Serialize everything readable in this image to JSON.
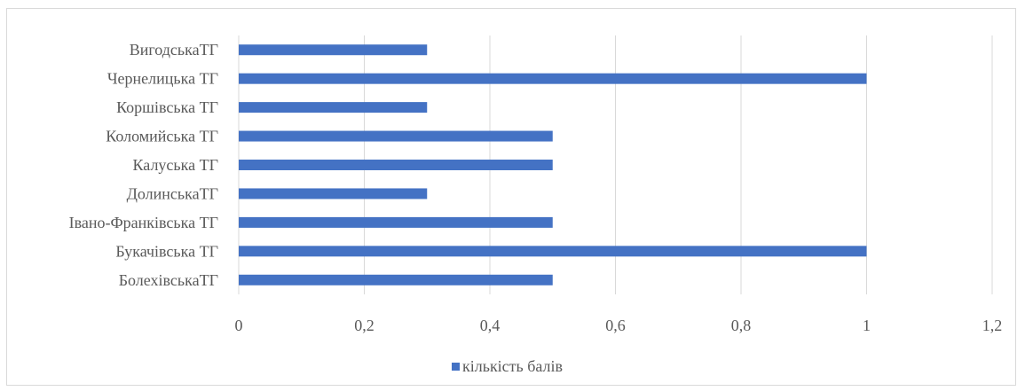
{
  "chart_data": {
    "type": "bar",
    "orientation": "horizontal",
    "categories": [
      "БолехівськаТГ",
      "Букачівська ТГ",
      "Івано-Франківська ТГ",
      "ДолинськаТГ",
      "Калуська ТГ",
      "Коломийська ТГ",
      "Коршівська ТГ",
      "Чернелицька ТГ",
      "ВигодськаТГ"
    ],
    "series": [
      {
        "name": "кількість балів",
        "values": [
          0.5,
          1,
          0.5,
          0.3,
          0.5,
          0.5,
          0.3,
          1,
          0.3
        ],
        "color": "#4472c4"
      }
    ],
    "xlim": [
      0,
      1.2
    ],
    "xticks": [
      0,
      0.2,
      0.4,
      0.6,
      0.8,
      1,
      1.2
    ],
    "xtick_labels": [
      "0",
      "0,2",
      "0,4",
      "0,6",
      "0,8",
      "1",
      "1,2"
    ],
    "title": "",
    "xlabel": "",
    "ylabel": "",
    "grid": "vertical",
    "gridline_color": "#d9d9d9",
    "legend_position": "bottom"
  }
}
